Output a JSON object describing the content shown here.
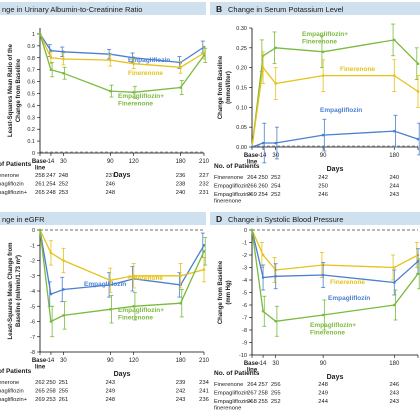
{
  "colors": {
    "empagliflozin": "#4a7fd1",
    "finerenone": "#e6c21a",
    "combination": "#7aba3e",
    "panel_header": "#cfe0ef",
    "text": "#1a1a1a"
  },
  "chart_data": [
    {
      "type": "line",
      "panel_letter": "",
      "title": "nge in Urinary Albumin-to-Creatinine Ratio",
      "xlabel": "Days",
      "ylabel": [
        "Least-Squares Mean Ratio of the",
        "Change from Baseline"
      ],
      "x": [
        0,
        14,
        30,
        90,
        120,
        180,
        210
      ],
      "x_tick_labels": [
        "Base-\nline",
        "14",
        "30",
        "90",
        "120",
        "180",
        "210"
      ],
      "yticks": [
        0.0,
        0.1,
        0.2,
        0.3,
        0.4,
        0.5,
        0.6,
        0.7,
        0.8,
        0.9,
        1.0
      ],
      "ylim": [
        0,
        1.05
      ],
      "series": [
        {
          "name": "Empagliflozin",
          "key": "empagliflozin",
          "values": [
            1.0,
            0.86,
            0.85,
            0.83,
            0.8,
            0.76,
            0.89
          ],
          "err": [
            0,
            0.05,
            0.04,
            0.04,
            0.04,
            0.05,
            0.05
          ]
        },
        {
          "name": "Finerenone",
          "key": "finerenone",
          "values": [
            1.0,
            0.8,
            0.79,
            0.78,
            0.75,
            0.72,
            0.84
          ],
          "err": [
            0,
            0.05,
            0.05,
            0.05,
            0.04,
            0.05,
            0.05
          ]
        },
        {
          "name": "Empagliflozin+\nFinerenone",
          "key": "combination",
          "values": [
            1.0,
            0.7,
            0.67,
            0.52,
            0.51,
            0.55,
            0.82
          ],
          "err": [
            0,
            0.06,
            0.05,
            0.05,
            0.05,
            0.06,
            0.06
          ]
        }
      ],
      "patients": {
        "heading": "of Patients",
        "rows": [
          {
            "label": "enerone",
            "values": [
              "258",
              "247",
              "248",
              "237",
              "",
              "236",
              "227"
            ]
          },
          {
            "label": "pagliflozin",
            "values": [
              "261",
              "254",
              "252",
              "246",
              "",
              "238",
              "232"
            ]
          },
          {
            "label": "pagliflozin+",
            "values": [
              "265",
              "248",
              "253",
              "248",
              "",
              "240",
              "231"
            ]
          }
        ]
      }
    },
    {
      "type": "line",
      "panel_letter": "B",
      "title": "Change in Serum Potassium Level",
      "xlabel": "Days",
      "ylabel": [
        "Change from Baseline",
        "(mmol/liter)"
      ],
      "x": [
        0,
        14,
        30,
        90,
        180,
        210
      ],
      "x_tick_labels": [
        "Base-\nline",
        "14",
        "30",
        "90",
        "180",
        ""
      ],
      "yticks": [
        0.0,
        0.05,
        0.1,
        0.15,
        0.2,
        0.25,
        0.3
      ],
      "ytick_labels": [
        "0.00",
        "0.05",
        "0.10",
        "0.15",
        "0.20",
        "0.25",
        "0.30"
      ],
      "ylim": [
        0,
        0.3
      ],
      "series": [
        {
          "name": "Empagliflozin+\nFinerenone",
          "key": "combination",
          "values": [
            0.0,
            0.23,
            0.25,
            0.24,
            0.27,
            0.21
          ],
          "err": [
            0,
            0.04,
            0.04,
            0.04,
            0.04,
            0.04
          ]
        },
        {
          "name": "Finerenone",
          "key": "finerenone",
          "values": [
            0.0,
            0.2,
            0.16,
            0.18,
            0.18,
            0.14
          ],
          "err": [
            0,
            0.04,
            0.04,
            0.04,
            0.04,
            0.04
          ]
        },
        {
          "name": "Empagliflozin",
          "key": "empagliflozin",
          "values": [
            0.0,
            0.01,
            0.01,
            0.03,
            0.04,
            0.02
          ],
          "err": [
            0,
            0.05,
            0.04,
            0.04,
            0.04,
            0.04
          ]
        }
      ],
      "patients": {
        "heading": "No. of Patients",
        "rows": [
          {
            "label": "Finerenone",
            "values": [
              "264",
              "250",
              "252",
              "242",
              "240"
            ]
          },
          {
            "label": "Empagliflozin",
            "values": [
              "266",
              "260",
              "254",
              "250",
              "244"
            ]
          },
          {
            "label": "Empagliflozin+\nfinerenone",
            "values": [
              "269",
              "254",
              "252",
              "246",
              "243"
            ]
          }
        ]
      }
    },
    {
      "type": "line",
      "panel_letter": "",
      "title": "nge in eGFR",
      "xlabel": "Days",
      "ylabel": [
        "Least-Squares Mean Change from",
        "Baseline (ml/min/1.73 m²)"
      ],
      "x": [
        0,
        14,
        30,
        90,
        120,
        180,
        210
      ],
      "x_tick_labels": [
        "Base-\nline",
        "14",
        "30",
        "90",
        "120",
        "180",
        "210"
      ],
      "yticks": [
        0,
        -1,
        -2,
        -3,
        -4,
        -5,
        -6,
        -7,
        -8
      ],
      "ylim": [
        -8,
        0
      ],
      "series": [
        {
          "name": "Empagliflozin",
          "key": "empagliflozin",
          "values": [
            0.0,
            -4.2,
            -3.9,
            -3.6,
            -3.2,
            -3.6,
            -1.0
          ],
          "err": [
            0,
            0.8,
            0.8,
            0.8,
            0.8,
            0.8,
            0.8
          ]
        },
        {
          "name": "Finerenone",
          "key": "finerenone",
          "values": [
            0.0,
            -1.5,
            -2.0,
            -3.3,
            -3.0,
            -3.0,
            -2.6
          ],
          "err": [
            0,
            0.8,
            0.8,
            0.8,
            0.8,
            0.8,
            0.8
          ]
        },
        {
          "name": "Empagliflozin+\nFinerenone",
          "key": "combination",
          "values": [
            0.0,
            -6.0,
            -5.6,
            -5.2,
            -5.0,
            -4.8,
            -1.4
          ],
          "err": [
            0,
            1.0,
            0.9,
            0.9,
            0.9,
            0.9,
            0.9
          ]
        }
      ],
      "patients": {
        "heading": "of Patients",
        "rows": [
          {
            "label": "enerone",
            "values": [
              "262",
              "250",
              "251",
              "243",
              "",
              "239",
              "234"
            ]
          },
          {
            "label": "pagliflozin",
            "values": [
              "265",
              "258",
              "255",
              "249",
              "",
              "242",
              "241"
            ]
          },
          {
            "label": "pagliflozin+",
            "values": [
              "269",
              "253",
              "261",
              "248",
              "",
              "243",
              "236"
            ]
          }
        ]
      }
    },
    {
      "type": "line",
      "panel_letter": "D",
      "title": "Change in Systolic Blood Pressure",
      "xlabel": "Days",
      "ylabel": [
        "Change from Baseline",
        "(mm Hg)"
      ],
      "x": [
        0,
        14,
        30,
        90,
        180,
        210
      ],
      "x_tick_labels": [
        "Base-\nline",
        "14",
        "30",
        "90",
        "180",
        ""
      ],
      "yticks": [
        0,
        -1,
        -2,
        -3,
        -4,
        -5,
        -6,
        -7,
        -8,
        -9,
        -10
      ],
      "ylim": [
        -10,
        0
      ],
      "series": [
        {
          "name": "Finerenone",
          "key": "finerenone",
          "values": [
            0.0,
            -2.0,
            -3.2,
            -2.8,
            -3.0,
            -2.0
          ],
          "err": [
            0,
            1.0,
            1.0,
            1.0,
            1.0,
            1.0
          ]
        },
        {
          "name": "Empagliflozin",
          "key": "empagliflozin",
          "values": [
            0.0,
            -3.8,
            -3.7,
            -3.6,
            -4.2,
            -2.5
          ],
          "err": [
            0,
            1.0,
            1.0,
            1.0,
            1.0,
            1.0
          ]
        },
        {
          "name": "Empagliflozin+\nFinerenone",
          "key": "combination",
          "values": [
            0.0,
            -6.5,
            -7.3,
            -6.8,
            -6.0,
            -3.5
          ],
          "err": [
            0,
            1.2,
            1.2,
            1.2,
            1.2,
            1.2
          ]
        }
      ],
      "patients": {
        "heading": "No. of Patients",
        "rows": [
          {
            "label": "Finerenone",
            "values": [
              "264",
              "257",
              "256",
              "248",
              "246"
            ]
          },
          {
            "label": "Empagliflozin",
            "values": [
              "267",
              "258",
              "255",
              "249",
              "243"
            ]
          },
          {
            "label": "Empagliflozin+\nfinerenone",
            "values": [
              "268",
              "255",
              "252",
              "244",
              "243"
            ]
          }
        ]
      }
    }
  ]
}
